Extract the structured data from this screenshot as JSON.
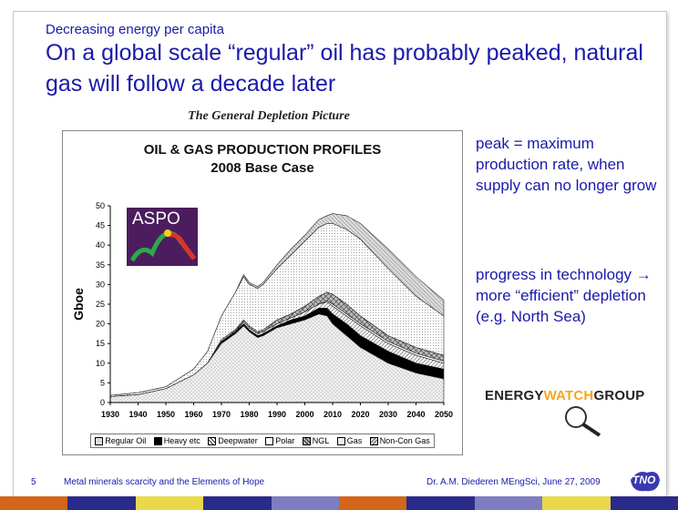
{
  "slide": {
    "subtitle": "Decreasing energy per capita",
    "title": "On a global scale “regular” oil has probably peaked, natural gas will follow a decade later",
    "figure_caption": "The General Depletion Picture",
    "side_note_1": "peak = maximum production rate, when supply can no longer grow",
    "side_note_2": "progress in technology → more “efficient” depletion (e.g. North Sea)",
    "page_number": "5",
    "footer_left": "Metal minerals scarcity and the Elements of Hope",
    "footer_right": "Dr. A.M. Diederen MEngSci, June 27, 2009",
    "logo_text": "TNO",
    "ewg_part1": "ENERGY",
    "ewg_part2": "WATCH",
    "ewg_part3": "GROUP",
    "aspo_label": "ASPO"
  },
  "colors": {
    "text_blue": "#1a1aaa",
    "ewg_orange": "#f5a623",
    "aspo_purple": "#4b1d5e"
  },
  "stripes": [
    {
      "color": "#d2661a"
    },
    {
      "color": "#2a2a8a"
    },
    {
      "color": "#e8d84a"
    },
    {
      "color": "#2a2a8a"
    },
    {
      "color": "#7d7dc0"
    },
    {
      "color": "#d2661a"
    },
    {
      "color": "#2a2a8a"
    },
    {
      "color": "#7d7dc0"
    },
    {
      "color": "#e8d84a"
    },
    {
      "color": "#2a2a8a"
    }
  ],
  "chart_data": {
    "type": "area",
    "title": "OIL & GAS PRODUCTION PROFILES",
    "subtitle": "2008 Base Case",
    "ylabel": "Gboe",
    "xlabel": "",
    "ylim": [
      0,
      50
    ],
    "xlim": [
      1930,
      2050
    ],
    "yticks": [
      "0",
      "5",
      "10",
      "15",
      "20",
      "25",
      "30",
      "35",
      "40",
      "45",
      "50"
    ],
    "xticks": [
      "1930",
      "1940",
      "1950",
      "1960",
      "1970",
      "1980",
      "1990",
      "2000",
      "2010",
      "2020",
      "2030",
      "2040",
      "2050"
    ],
    "x": [
      1930,
      1940,
      1950,
      1960,
      1965,
      1970,
      1975,
      1978,
      1980,
      1983,
      1985,
      1990,
      1995,
      2000,
      2005,
      2008,
      2010,
      2015,
      2020,
      2030,
      2040,
      2050
    ],
    "series": [
      {
        "name": "Regular Oil",
        "values": [
          1.5,
          2,
          3.5,
          7,
          10,
          15,
          17.5,
          19.5,
          18,
          16.5,
          17,
          19,
          20,
          21,
          22.5,
          22,
          20,
          17,
          14,
          10,
          7.5,
          6
        ]
      },
      {
        "name": "Heavy etc",
        "values": [
          1.5,
          2,
          3.5,
          7,
          10,
          15.5,
          18,
          20,
          18.5,
          17,
          17.5,
          19.5,
          21,
          22,
          24,
          24,
          22.5,
          20,
          17,
          13,
          10,
          8.5
        ]
      },
      {
        "name": "Deepwater",
        "values": [
          1.5,
          2,
          3.5,
          7,
          10,
          15.5,
          18,
          20.5,
          19,
          17.5,
          18,
          20,
          21.5,
          23,
          25,
          25.5,
          24.5,
          22,
          19.5,
          15,
          12,
          10
        ]
      },
      {
        "name": "Polar",
        "values": [
          1.5,
          2,
          3.5,
          7,
          10,
          15.5,
          18,
          20.5,
          19,
          17.5,
          18,
          20,
          21.5,
          23,
          25,
          25.8,
          25,
          22.5,
          20,
          15.5,
          12.5,
          10.5
        ]
      },
      {
        "name": "NGL",
        "values": [
          1.5,
          2,
          3.5,
          7,
          10,
          16,
          18.5,
          21,
          19.5,
          18,
          18.5,
          21,
          22.5,
          24.5,
          27,
          28,
          27.5,
          25,
          22,
          17,
          14,
          12
        ]
      },
      {
        "name": "Gas",
        "values": [
          1.8,
          2.5,
          4,
          8.5,
          13,
          22,
          28,
          32,
          30,
          29,
          30,
          34,
          37.5,
          41,
          44.5,
          45.5,
          45.5,
          44,
          41.5,
          34,
          27,
          22
        ]
      },
      {
        "name": "Non-Con Gas",
        "values": [
          1.8,
          2.5,
          4,
          8.5,
          13,
          22,
          28,
          32.5,
          30.5,
          29.5,
          30.5,
          35,
          39,
          42.5,
          46.5,
          47.5,
          48,
          47.5,
          45.5,
          39,
          32,
          26
        ]
      }
    ],
    "legend": [
      "Regular Oil",
      "Heavy etc",
      "Deepwater",
      "Polar",
      "NGL",
      "Gas",
      "Non-Con Gas"
    ],
    "legend_position": "bottom"
  }
}
